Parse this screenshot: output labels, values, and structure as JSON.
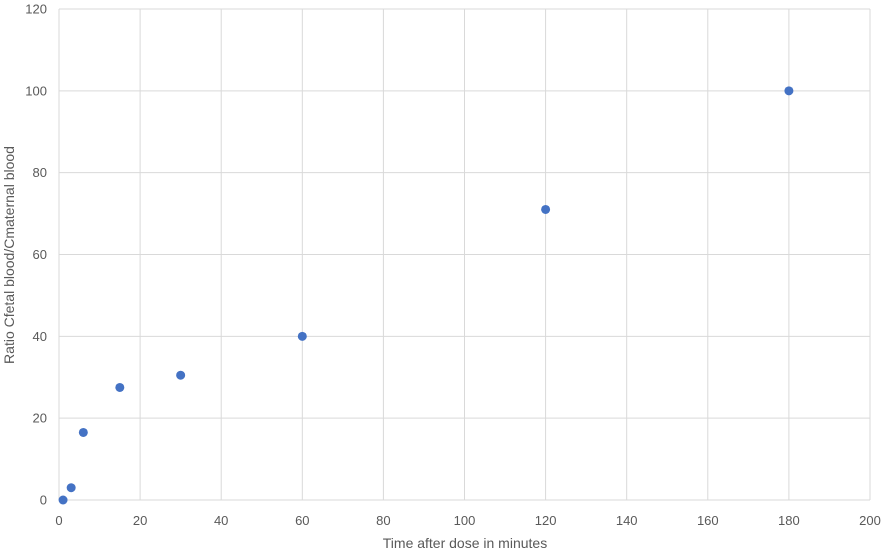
{
  "chart_data": {
    "type": "scatter",
    "xlabel": "Time after dose in minutes",
    "ylabel": "Ratio Cfetal blood/Cmaternal blood",
    "xlim": [
      0,
      200
    ],
    "ylim": [
      0,
      120
    ],
    "xticks": [
      0,
      20,
      40,
      60,
      80,
      100,
      120,
      140,
      160,
      180,
      200
    ],
    "yticks": [
      0,
      20,
      40,
      60,
      80,
      100,
      120
    ],
    "grid": true,
    "series": [
      {
        "color": "#4472c4",
        "points": [
          {
            "x": 1,
            "y": 0
          },
          {
            "x": 3,
            "y": 3
          },
          {
            "x": 6,
            "y": 16.5
          },
          {
            "x": 15,
            "y": 27.5
          },
          {
            "x": 30,
            "y": 30.5
          },
          {
            "x": 60,
            "y": 40
          },
          {
            "x": 120,
            "y": 71
          },
          {
            "x": 180,
            "y": 100
          }
        ]
      }
    ]
  }
}
